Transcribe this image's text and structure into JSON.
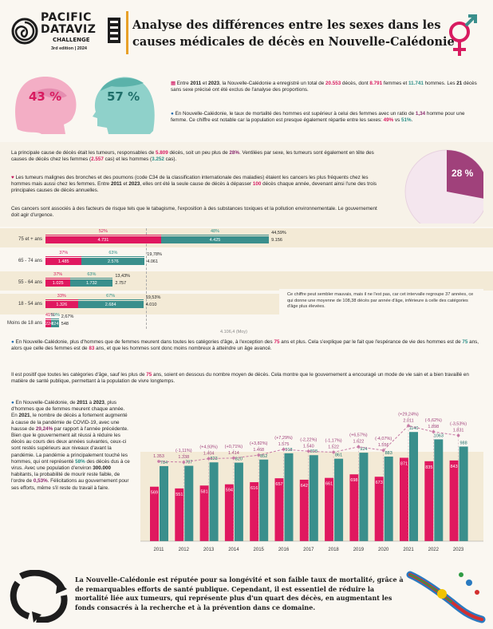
{
  "header": {
    "logo_line1": "PACIFIC",
    "logo_line2": "DATAVIZ",
    "logo_line3": "CHALLENGE",
    "logo_edition": "3rd edition | 2024",
    "title_line1": "Analyse des différences entre les sexes dans les",
    "title_line2": "causes médicales de décès en Nouvelle-Calédonie"
  },
  "heads": {
    "female_pct": "43 %",
    "male_pct": "57 %"
  },
  "intro": {
    "p1_a": "Entre ",
    "p1_y1": "2011",
    "p1_b": " et ",
    "p1_y2": "2023",
    "p1_c": ", la Nouvelle-Calédonie a enregistré un total de ",
    "p1_total": "20.553",
    "p1_d": " décès, dont ",
    "p1_f": "8.791",
    "p1_e": " femmes et ",
    "p1_m": "11.741",
    "p1_g": " hommes. Les ",
    "p1_21": "21",
    "p1_h": " décès sans sexe précisé ont été exclus de l'analyse des proportions.",
    "p2_a": "En Nouvelle-Calédonie, le taux de mortalité des hommes est supérieur à celui des femmes avec un ratio de ",
    "p2_ratio": "1,34",
    "p2_b": " homme pour une femme. Ce chiffre est notable car la population est presque également répartie entre les sexes: ",
    "p2_f": "49%",
    "p2_vs": " vs ",
    "p2_m": "51%",
    "p2_end": "."
  },
  "tumours": {
    "p1_a": "La principale cause de décès était les tumeurs, responsables de ",
    "p1_n": "5.809",
    "p1_b": " décès, soit un peu plus de ",
    "p1_pct": "28%",
    "p1_c": ". Ventilées par sexe, les tumeurs sont également en tête des causes de décès chez les femmes (",
    "p1_f": "2.557",
    "p1_d": " cas) et les hommes (",
    "p1_m": "3.252",
    "p1_e": " cas).",
    "p2_a": "Les tumeurs malignes des bronches et des poumons (code C34 de la classification internationale des maladies) étaient les cancers les plus fréquents chez les hommes mais aussi chez les femmes. Entre ",
    "p2_y1": "2011",
    "p2_b": " et ",
    "p2_y2": "2023",
    "p2_c": ", elles ont été la seule cause de décès à dépasser ",
    "p2_100": "100",
    "p2_d": " décès chaque année, devenant ainsi l'une des trois principales causes de décès annuelles.",
    "p3": "Ces cancers sont associés à des facteurs de risque tels que le tabagisme, l'exposition à des substances toxiques et la pollution environnementale. Le gouvernement doit agir d'urgence.",
    "pie_label": "28 %",
    "pie_value": 28
  },
  "age_chart": {
    "mean_label": "4.106,4 (Moy)",
    "note": "Ce chiffre peut sembler mauvais, mais il ne l'est pas, car cet intervalle regroupe 37 années, ce qui donne une moyenne de 108,38 décès par année d'âge, inférieure à celle des catégories d'âge plus élevées."
  },
  "chart_data": [
    {
      "type": "bar",
      "orientation": "horizontal",
      "stacked": true,
      "categories": [
        "75 et + ans",
        "65 - 74 ans",
        "55 - 64 ans",
        "18 - 54 ans",
        "Moins de 18 ans"
      ],
      "series": [
        {
          "name": "Femmes",
          "values": [
            4731,
            1485,
            1025,
            1326,
            224
          ],
          "pct": [
            "52%",
            "37%",
            "37%",
            "33%",
            "41%"
          ]
        },
        {
          "name": "Hommes",
          "values": [
            4425,
            2576,
            1732,
            2684,
            324
          ],
          "pct": [
            "48%",
            "63%",
            "63%",
            "67%",
            "59%"
          ]
        }
      ],
      "totals": [
        9156,
        4061,
        2757,
        4010,
        548
      ],
      "share_of_total": [
        "44,59%",
        "19,78%",
        "13,43%",
        "19,53%",
        "2,67%"
      ],
      "mean": 4106.4
    },
    {
      "type": "bar",
      "categories": [
        "2011",
        "2012",
        "2013",
        "2014",
        "2015",
        "2016",
        "2017",
        "2018",
        "2019",
        "2020",
        "2021",
        "2022",
        "2023"
      ],
      "series": [
        {
          "name": "Femmes",
          "values": [
            569,
            551,
            581,
            594,
            616,
            657,
            642,
            661,
            698,
            673,
            871,
            835,
            843
          ]
        },
        {
          "name": "Hommes",
          "values": [
            784,
            787,
            823,
            820,
            852,
            918,
            898,
            861,
            924,
            883,
            1140,
            1063,
            988
          ]
        }
      ],
      "totals": [
        1353,
        1338,
        1404,
        1414,
        1468,
        1575,
        1540,
        1522,
        1622,
        1556,
        2011,
        1898,
        1831
      ],
      "changes": [
        "",
        "(-1,11%)",
        "(+4,93%)",
        "(+0,71%)",
        "(+3,82%)",
        "(+7,29%)",
        "(-2,22%)",
        "(-1,17%)",
        "(+6,57%)",
        "(-4,07%)",
        "(+29,24%)",
        "(-5,62%)",
        "(-3,53%)"
      ]
    }
  ],
  "middle": {
    "p1_a": "En Nouvelle-Calédonie, plus d'hommes que de femmes meurent dans toutes les catégories d'âge, à l'exception des ",
    "p1_75a": "75",
    "p1_b": " ans et plus. Cela s'explique par le fait que l'espérance de vie des hommes est de ",
    "p1_75b": "75",
    "p1_c": " ans, alors que celle des femmes est de ",
    "p1_83": "83",
    "p1_d": " ans, et que les hommes sont donc moins nombreux à atteindre un âge avancé.",
    "p2_a": "Il est positif que toutes les catégories d'âge, sauf les plus de ",
    "p2_75": "75",
    "p2_b": " ans, soient en dessous du nombre moyen de décès. Cela montre que le gouvernement a encouragé un mode de vie sain et a bien travaillé en matière de santé publique, permettant à la population de vivre longtemps."
  },
  "covid": {
    "t_a": "En Nouvelle-Calédonie, de ",
    "t_y1": "2011",
    "t_b": " à ",
    "t_y2": "2023",
    "t_c": ", plus d'hommes que de femmes meurent chaque année. En ",
    "t_y3": "2021",
    "t_d": ", le nombre de décès a fortement augmenté à cause de la pandémie de COVID-19, avec une hausse de ",
    "t_pct": "29,24%",
    "t_e": " par rapport à l'année précédente. Bien que le gouvernement ait réussi à réduire les décès au cours des deux années suivantes, ceux-ci sont restés supérieurs aux niveaux d'avant la pandémie. La pandémie a principalement touché les hommes, qui ont représenté ",
    "t_58": "58%",
    "t_f": " des décès dus à ce virus. Avec une population d'environ ",
    "t_pop": "300.000",
    "t_g": " habitants, la probabilité de mourir reste faible, de l'ordre de ",
    "t_053": "0,53%",
    "t_h": ". Félicitations au gouvernement pour ses efforts, même s'il reste du travail à faire."
  },
  "footer": {
    "text": "La Nouvelle-Calédonie est réputée pour sa longévité et son faible taux de mortalité, grâce à de remarquables efforts de santé publique. Cependant, il est essentiel de réduire la mortalité liée aux tumeurs, qui représente plus d'un quart des décès, en augmentant les fonds consacrés à la recherche et à la prévention dans ce domaine."
  },
  "colors": {
    "female": "#e0185f",
    "male": "#3a8f8c",
    "female_light": "#f3aec5",
    "male_light": "#8fd1ca",
    "band": "#f3ead6",
    "line": "#c77ba5"
  }
}
